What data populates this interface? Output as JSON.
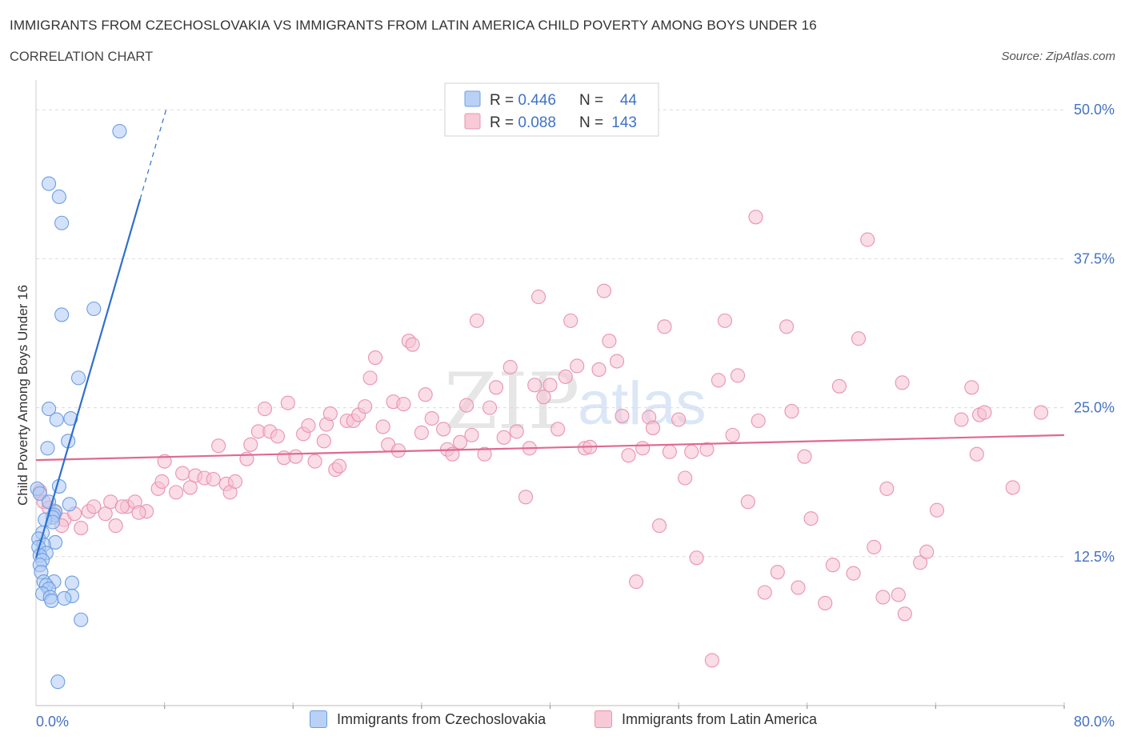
{
  "title": "IMMIGRANTS FROM CZECHOSLOVAKIA VS IMMIGRANTS FROM LATIN AMERICA CHILD POVERTY AMONG BOYS UNDER 16",
  "subtitle": "CORRELATION CHART",
  "source": "Source: ZipAtlas.com",
  "watermark": {
    "zip": "ZIP",
    "atlas": "atlas"
  },
  "colors": {
    "blue_fill": "#aecbf5",
    "blue_stroke": "#6c9ee0",
    "blue_line": "#2f6fce",
    "pink_fill": "#f6c1d1",
    "pink_stroke": "#e993b0",
    "pink_line": "#e0698f",
    "axis_label": "#4472c4",
    "grid": "#dcdcdc"
  },
  "legend": {
    "rows": [
      {
        "r_label": "R = ",
        "r_value": "0.446",
        "n_label": "N = ",
        "n_value": "44"
      },
      {
        "r_label": "R = ",
        "r_value": "0.088",
        "n_label": "N = ",
        "n_value": "143"
      }
    ]
  },
  "chart_data": {
    "type": "scatter",
    "title": "IMMIGRANTS FROM CZECHOSLOVAKIA VS IMMIGRANTS FROM LATIN AMERICA CHILD POVERTY AMONG BOYS UNDER 16",
    "xlabel": "",
    "ylabel": "Child Poverty Among Boys Under 16",
    "xlim": [
      0,
      80
    ],
    "ylim": [
      0,
      52.5
    ],
    "x_tick_labels": [
      "0.0%",
      "80.0%"
    ],
    "y_ticks": [
      12.5,
      25,
      37.5,
      50
    ],
    "y_tick_labels": [
      "12.5%",
      "25.0%",
      "37.5%",
      "50.0%"
    ],
    "grid": true,
    "series": [
      {
        "name": "Immigrants from Czechoslovakia",
        "color": "blue",
        "R": 0.446,
        "N": 44,
        "trend": {
          "x0": 0.0,
          "y0": 12.4,
          "x1": 8.1,
          "y1": 42.5,
          "dash_to_x": 10.2,
          "dash_to_y": 50.3
        },
        "points": [
          [
            6.5,
            48.2
          ],
          [
            1.0,
            43.8
          ],
          [
            1.8,
            42.7
          ],
          [
            2.0,
            40.5
          ],
          [
            2.0,
            32.8
          ],
          [
            4.5,
            33.3
          ],
          [
            3.3,
            27.5
          ],
          [
            1.0,
            24.9
          ],
          [
            1.6,
            24.0
          ],
          [
            2.7,
            24.1
          ],
          [
            2.5,
            22.2
          ],
          [
            0.9,
            21.6
          ],
          [
            1.8,
            18.4
          ],
          [
            0.1,
            18.2
          ],
          [
            0.3,
            17.8
          ],
          [
            1.0,
            17.1
          ],
          [
            2.6,
            16.9
          ],
          [
            1.5,
            16.3
          ],
          [
            1.4,
            16.0
          ],
          [
            1.3,
            15.8
          ],
          [
            0.7,
            15.6
          ],
          [
            1.3,
            15.4
          ],
          [
            0.5,
            14.5
          ],
          [
            0.2,
            14.0
          ],
          [
            1.5,
            13.7
          ],
          [
            0.6,
            13.5
          ],
          [
            0.2,
            13.3
          ],
          [
            0.8,
            12.8
          ],
          [
            0.3,
            12.6
          ],
          [
            0.5,
            12.2
          ],
          [
            0.3,
            11.8
          ],
          [
            0.4,
            11.2
          ],
          [
            0.6,
            10.4
          ],
          [
            1.4,
            10.4
          ],
          [
            2.8,
            10.3
          ],
          [
            0.8,
            10.1
          ],
          [
            1.0,
            9.8
          ],
          [
            0.5,
            9.4
          ],
          [
            1.1,
            9.1
          ],
          [
            2.8,
            9.2
          ],
          [
            1.2,
            8.8
          ],
          [
            2.2,
            9.0
          ],
          [
            3.5,
            7.2
          ],
          [
            1.7,
            2.0
          ]
        ]
      },
      {
        "name": "Immigrants from Latin America",
        "color": "pink",
        "R": 0.088,
        "N": 143,
        "trend": {
          "x0": 0.0,
          "y0": 20.6,
          "x1": 80.0,
          "y1": 22.7
        },
        "points": [
          [
            0.3,
            18.0
          ],
          [
            0.6,
            17.1
          ],
          [
            1.0,
            16.6
          ],
          [
            1.5,
            16.2
          ],
          [
            2.2,
            15.6
          ],
          [
            3.5,
            14.9
          ],
          [
            2.0,
            15.1
          ],
          [
            3.0,
            16.1
          ],
          [
            4.1,
            16.3
          ],
          [
            4.5,
            16.7
          ],
          [
            5.4,
            16.1
          ],
          [
            6.2,
            15.1
          ],
          [
            5.8,
            17.1
          ],
          [
            7.1,
            16.7
          ],
          [
            7.7,
            17.1
          ],
          [
            8.6,
            16.3
          ],
          [
            8.0,
            16.2
          ],
          [
            6.7,
            16.7
          ],
          [
            9.5,
            18.2
          ],
          [
            10.0,
            20.5
          ],
          [
            9.8,
            18.8
          ],
          [
            10.9,
            17.9
          ],
          [
            11.4,
            19.5
          ],
          [
            12.4,
            19.3
          ],
          [
            12.0,
            18.3
          ],
          [
            13.1,
            19.1
          ],
          [
            13.8,
            19.0
          ],
          [
            14.8,
            18.6
          ],
          [
            15.1,
            17.9
          ],
          [
            14.2,
            21.8
          ],
          [
            15.5,
            18.8
          ],
          [
            16.4,
            20.7
          ],
          [
            16.7,
            21.9
          ],
          [
            17.3,
            23.0
          ],
          [
            17.8,
            24.9
          ],
          [
            18.2,
            23.0
          ],
          [
            18.8,
            22.6
          ],
          [
            19.3,
            20.8
          ],
          [
            19.6,
            25.4
          ],
          [
            20.2,
            20.9
          ],
          [
            20.8,
            22.8
          ],
          [
            21.2,
            23.5
          ],
          [
            21.7,
            20.5
          ],
          [
            22.4,
            22.2
          ],
          [
            22.6,
            23.6
          ],
          [
            22.9,
            24.5
          ],
          [
            23.3,
            19.8
          ],
          [
            23.6,
            20.1
          ],
          [
            24.2,
            23.9
          ],
          [
            24.7,
            23.9
          ],
          [
            25.1,
            24.4
          ],
          [
            25.6,
            25.1
          ],
          [
            26.0,
            27.5
          ],
          [
            26.4,
            29.2
          ],
          [
            27.0,
            23.4
          ],
          [
            27.4,
            21.9
          ],
          [
            27.8,
            25.5
          ],
          [
            28.2,
            21.4
          ],
          [
            28.6,
            25.3
          ],
          [
            29.0,
            30.6
          ],
          [
            29.3,
            30.3
          ],
          [
            30.0,
            22.9
          ],
          [
            30.3,
            26.1
          ],
          [
            30.8,
            24.1
          ],
          [
            31.7,
            23.2
          ],
          [
            32.0,
            21.5
          ],
          [
            32.4,
            21.1
          ],
          [
            33.0,
            22.1
          ],
          [
            33.5,
            25.2
          ],
          [
            33.9,
            22.7
          ],
          [
            34.3,
            32.3
          ],
          [
            34.9,
            21.1
          ],
          [
            35.3,
            25.0
          ],
          [
            35.8,
            26.7
          ],
          [
            36.4,
            22.5
          ],
          [
            36.9,
            28.4
          ],
          [
            37.4,
            23.0
          ],
          [
            38.1,
            17.5
          ],
          [
            38.4,
            21.6
          ],
          [
            38.8,
            26.9
          ],
          [
            39.1,
            34.3
          ],
          [
            39.5,
            25.9
          ],
          [
            40.0,
            26.9
          ],
          [
            40.6,
            23.2
          ],
          [
            41.2,
            27.6
          ],
          [
            41.6,
            32.3
          ],
          [
            42.1,
            28.5
          ],
          [
            42.7,
            21.6
          ],
          [
            43.1,
            21.7
          ],
          [
            43.8,
            28.2
          ],
          [
            44.2,
            34.8
          ],
          [
            44.6,
            30.6
          ],
          [
            45.2,
            28.9
          ],
          [
            45.6,
            24.3
          ],
          [
            46.1,
            21.0
          ],
          [
            46.7,
            10.4
          ],
          [
            47.2,
            21.6
          ],
          [
            47.7,
            24.2
          ],
          [
            48.0,
            23.3
          ],
          [
            48.5,
            15.1
          ],
          [
            48.9,
            31.8
          ],
          [
            49.3,
            21.3
          ],
          [
            50.0,
            24.0
          ],
          [
            50.5,
            19.1
          ],
          [
            51.0,
            21.3
          ],
          [
            51.4,
            12.4
          ],
          [
            52.2,
            21.5
          ],
          [
            52.6,
            3.8
          ],
          [
            53.1,
            27.3
          ],
          [
            53.6,
            32.3
          ],
          [
            54.2,
            22.7
          ],
          [
            54.6,
            27.7
          ],
          [
            55.4,
            17.1
          ],
          [
            56.0,
            41.0
          ],
          [
            56.2,
            23.9
          ],
          [
            56.7,
            9.5
          ],
          [
            57.7,
            11.2
          ],
          [
            58.4,
            31.8
          ],
          [
            58.8,
            24.7
          ],
          [
            59.3,
            9.9
          ],
          [
            59.8,
            20.9
          ],
          [
            60.3,
            15.7
          ],
          [
            61.4,
            8.6
          ],
          [
            62.0,
            11.8
          ],
          [
            62.5,
            26.8
          ],
          [
            63.6,
            11.1
          ],
          [
            64.0,
            30.8
          ],
          [
            64.7,
            39.1
          ],
          [
            65.2,
            13.3
          ],
          [
            65.9,
            9.1
          ],
          [
            66.2,
            18.2
          ],
          [
            67.1,
            9.3
          ],
          [
            67.4,
            27.1
          ],
          [
            67.6,
            7.7
          ],
          [
            68.8,
            12.0
          ],
          [
            69.3,
            12.9
          ],
          [
            70.1,
            16.4
          ],
          [
            72.0,
            24.0
          ],
          [
            72.8,
            26.7
          ],
          [
            73.2,
            21.1
          ],
          [
            73.4,
            24.4
          ],
          [
            73.8,
            24.6
          ],
          [
            76.0,
            18.3
          ],
          [
            78.2,
            24.6
          ]
        ]
      }
    ]
  },
  "bottom_legend": [
    "Immigrants from Czechoslovakia",
    "Immigrants from Latin America"
  ]
}
